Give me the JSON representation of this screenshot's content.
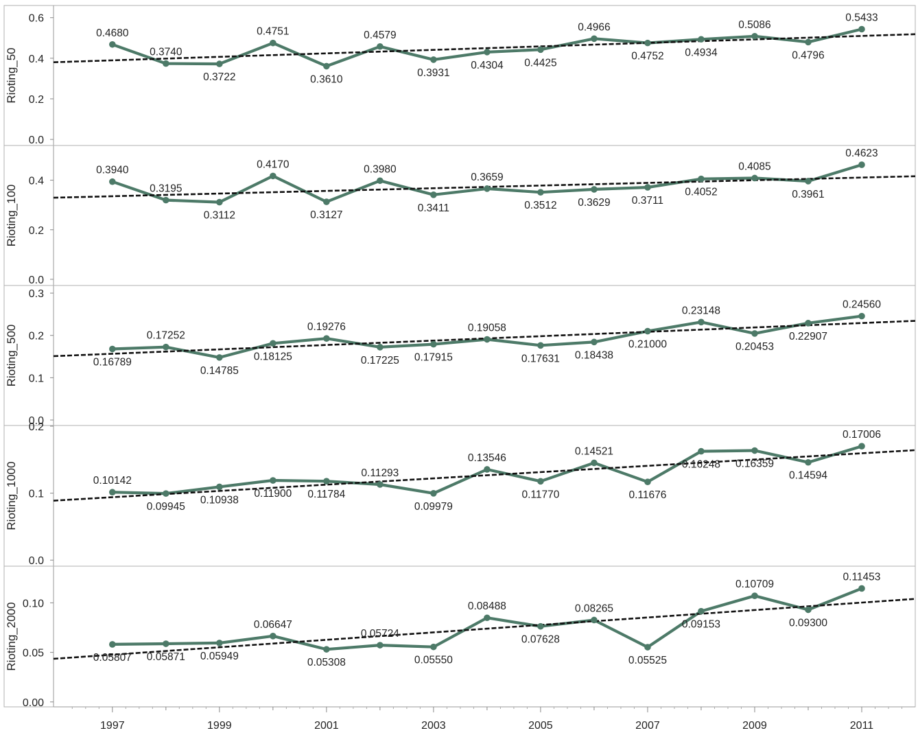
{
  "chart_data": {
    "type": "line",
    "x_axis": {
      "values": [
        1997,
        1998,
        1999,
        2000,
        2001,
        2002,
        2003,
        2004,
        2005,
        2006,
        2007,
        2008,
        2009,
        2010,
        2011
      ],
      "tick_labels": [
        "1997",
        "1999",
        "2001",
        "2003",
        "2005",
        "2007",
        "2009",
        "2011"
      ],
      "range": [
        1995.9,
        2012.0
      ]
    },
    "line_color": "#4d7a68",
    "trend_color": "#111111",
    "grid": false,
    "panels": [
      {
        "ylabel": "Rioting_50",
        "ylim": [
          -0.03,
          0.66
        ],
        "yticks": [
          "0.0",
          "0.2",
          "0.4",
          "0.6"
        ],
        "values": [
          0.468,
          0.374,
          0.3722,
          0.4751,
          0.361,
          0.4579,
          0.3931,
          0.4304,
          0.4425,
          0.4966,
          0.4752,
          0.4934,
          0.5086,
          0.4796,
          0.5433
        ],
        "labels": [
          "0.4680",
          "0.3740",
          "0.3722",
          "0.4751",
          "0.3610",
          "0.4579",
          "0.3931",
          "0.4304",
          "0.4425",
          "0.4966",
          "0.4752",
          "0.4934",
          "0.5086",
          "0.4796",
          "0.5433"
        ],
        "trend": [
          0.3803,
          0.5186
        ]
      },
      {
        "ylabel": "Rioting_100",
        "ylim": [
          -0.025,
          0.54
        ],
        "yticks": [
          "0.0",
          "0.2",
          "0.4"
        ],
        "values": [
          0.394,
          0.3195,
          0.3112,
          0.417,
          0.3127,
          0.398,
          0.3411,
          0.3659,
          0.3512,
          0.3629,
          0.3711,
          0.4052,
          0.4085,
          0.3961,
          0.4623
        ],
        "labels": [
          "0.3940",
          "0.3195",
          "0.3112",
          "0.4170",
          "0.3127",
          "0.3980",
          "0.3411",
          "0.3659",
          "0.3512",
          "0.3629",
          "0.3711",
          "0.4052",
          "0.4085",
          "0.3961",
          "0.4623"
        ],
        "trend": [
          0.3293,
          0.416
        ]
      },
      {
        "ylabel": "Rioting_500",
        "ylim": [
          -0.013,
          0.318
        ],
        "yticks": [
          "0.0",
          "0.1",
          "0.2",
          "0.3"
        ],
        "values": [
          0.16789,
          0.17252,
          0.14785,
          0.18125,
          0.19276,
          0.17225,
          0.17915,
          0.19058,
          0.17631,
          0.18438,
          0.21,
          0.23148,
          0.20453,
          0.22907,
          0.2456
        ],
        "labels": [
          "0.16789",
          "0.17252",
          "0.14785",
          "0.18125",
          "0.19276",
          "0.17225",
          "0.17915",
          "0.19058",
          "0.17631",
          "0.18438",
          "0.21000",
          "0.23148",
          "0.20453",
          "0.22907",
          "0.24560"
        ],
        "trend": [
          0.1509,
          0.2344
        ]
      },
      {
        "ylabel": "Rioting_1000",
        "ylim": [
          -0.009,
          0.201
        ],
        "yticks": [
          "0.0",
          "0.1",
          "0.2"
        ],
        "values": [
          0.10142,
          0.09945,
          0.10938,
          0.119,
          0.11784,
          0.11293,
          0.09979,
          0.13546,
          0.1177,
          0.14521,
          0.11676,
          0.16248,
          0.16359,
          0.14594,
          0.17006
        ],
        "labels": [
          "0.10142",
          "0.09945",
          "0.10938",
          "0.11900",
          "0.11784",
          "0.11293",
          "0.09979",
          "0.13546",
          "0.11770",
          "0.14521",
          "0.11676",
          "0.16248",
          "0.16359",
          "0.14594",
          "0.17006"
        ],
        "trend": [
          0.0888,
          0.1642
        ]
      },
      {
        "ylabel": "Rioting_2000",
        "ylim": [
          -0.005,
          0.137
        ],
        "yticks": [
          "0.00",
          "0.05",
          "0.10"
        ],
        "values": [
          0.05807,
          0.05871,
          0.05949,
          0.06647,
          0.05308,
          0.05724,
          0.0555,
          0.08488,
          0.07628,
          0.08265,
          0.05525,
          0.09153,
          0.10709,
          0.093,
          0.11453
        ],
        "labels": [
          "0.05807",
          "0.05871",
          "0.05949",
          "0.06647",
          "0.05308",
          "0.05724",
          "0.05550",
          "0.08488",
          "0.07628",
          "0.08265",
          "0.05525",
          "0.09153",
          "0.10709",
          "0.09300",
          "0.11453"
        ],
        "trend": [
          0.0435,
          0.104
        ]
      }
    ]
  }
}
